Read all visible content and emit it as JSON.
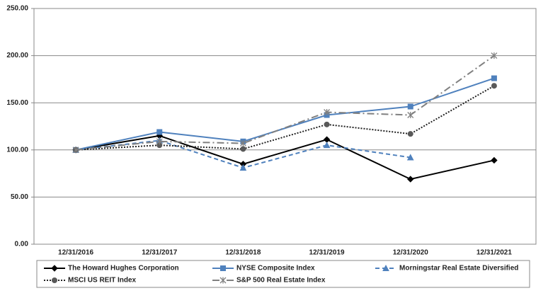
{
  "chart_data": {
    "type": "line",
    "categories": [
      "12/31/2016",
      "12/31/2017",
      "12/31/2018",
      "12/31/2019",
      "12/31/2020",
      "12/31/2021"
    ],
    "series": [
      {
        "name": "The Howard Hughes Corporation",
        "color": "#000000",
        "dash": "none",
        "marker": "diamond",
        "values": [
          100,
          115,
          85,
          111,
          69,
          89
        ]
      },
      {
        "name": "NYSE Composite Index",
        "color": "#4f81bd",
        "dash": "none",
        "marker": "square",
        "values": [
          100,
          119,
          109,
          137,
          146,
          176
        ]
      },
      {
        "name": "Morningstar Real Estate Diversified",
        "color": "#4f81bd",
        "dash": "6 4",
        "marker": "triangle",
        "values": [
          100,
          110,
          81,
          105,
          92,
          null
        ]
      },
      {
        "name": "MSCI US REIT Index",
        "color": "#222222",
        "marker_color": "#595959",
        "dash": "2 2",
        "marker": "circle",
        "values": [
          100,
          105,
          101,
          127,
          117,
          168
        ]
      },
      {
        "name": "S&P 500 Real Estate Index",
        "color": "#808080",
        "dash": "10 4 2 4",
        "marker": "star",
        "values": [
          100,
          109,
          107,
          140,
          137,
          200
        ]
      }
    ],
    "ylim": [
      0,
      250
    ],
    "yticks": [
      {
        "value": 0,
        "label": "0.00"
      },
      {
        "value": 50,
        "label": "50.00"
      },
      {
        "value": 100,
        "label": "100.00"
      },
      {
        "value": 150,
        "label": "150.00"
      },
      {
        "value": 200,
        "label": "200.00"
      },
      {
        "value": 250,
        "label": "250.00"
      }
    ],
    "grid": true
  }
}
